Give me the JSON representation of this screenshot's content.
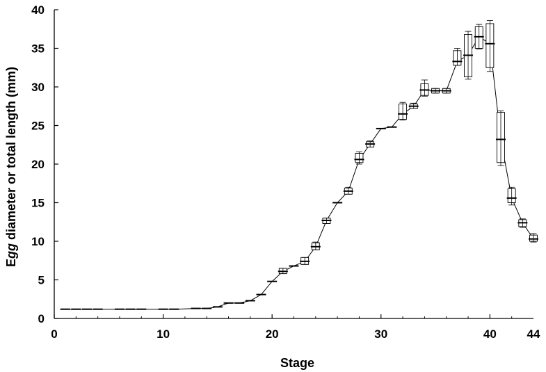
{
  "chart_data": {
    "type": "box",
    "xlabel": "Stage",
    "ylabel_parts": [
      "E",
      "gg",
      " diameter or total length (mm)"
    ],
    "xlim": [
      0,
      44
    ],
    "ylim": [
      0,
      40
    ],
    "xticks": [
      0,
      10,
      20,
      30,
      40,
      44
    ],
    "yticks": [
      0,
      5,
      10,
      15,
      20,
      25,
      30,
      35,
      40
    ],
    "grid": false,
    "series": [
      {
        "stages": [
          1,
          2,
          3,
          4,
          6,
          7,
          8,
          10,
          11,
          13,
          14,
          15,
          16,
          17,
          18,
          19,
          20,
          21,
          22,
          23,
          24,
          25,
          26,
          27,
          28,
          29,
          30,
          31,
          32,
          33,
          34,
          35,
          36,
          37,
          38,
          39,
          40,
          41,
          42,
          43,
          44
        ],
        "median": [
          1.2,
          1.2,
          1.2,
          1.2,
          1.2,
          1.2,
          1.2,
          1.2,
          1.2,
          1.3,
          1.3,
          1.5,
          2.0,
          2.0,
          2.3,
          3.1,
          4.8,
          6.1,
          6.8,
          7.4,
          9.3,
          12.7,
          15.0,
          16.5,
          20.6,
          22.6,
          24.6,
          24.8,
          26.5,
          27.5,
          29.6,
          29.5,
          29.5,
          33.3,
          34.1,
          36.5,
          35.6,
          23.2,
          15.6,
          12.4,
          10.3
        ],
        "q1": [
          null,
          null,
          null,
          null,
          null,
          null,
          null,
          null,
          null,
          null,
          null,
          null,
          null,
          null,
          null,
          null,
          null,
          5.8,
          null,
          7.0,
          8.9,
          12.3,
          null,
          16.1,
          20.2,
          22.2,
          null,
          null,
          25.8,
          27.2,
          28.9,
          29.2,
          29.2,
          32.8,
          31.3,
          35.0,
          32.5,
          20.2,
          15.0,
          11.9,
          10.0
        ],
        "q3": [
          null,
          null,
          null,
          null,
          null,
          null,
          null,
          null,
          null,
          null,
          null,
          null,
          null,
          null,
          null,
          null,
          null,
          6.5,
          null,
          7.9,
          9.8,
          13.0,
          null,
          16.9,
          21.4,
          22.9,
          null,
          null,
          27.8,
          27.8,
          30.4,
          29.8,
          29.8,
          34.7,
          36.8,
          37.8,
          38.2,
          26.7,
          16.8,
          12.8,
          10.8
        ],
        "min": [
          null,
          null,
          null,
          null,
          null,
          null,
          null,
          null,
          null,
          null,
          null,
          null,
          null,
          null,
          null,
          null,
          null,
          5.8,
          null,
          7.0,
          8.9,
          12.3,
          null,
          16.1,
          20.0,
          22.2,
          null,
          null,
          25.7,
          27.2,
          28.8,
          29.2,
          29.2,
          32.8,
          31.0,
          34.9,
          32.0,
          19.8,
          14.7,
          11.8,
          9.9
        ],
        "max": [
          null,
          null,
          null,
          null,
          null,
          null,
          null,
          null,
          null,
          null,
          null,
          null,
          null,
          null,
          null,
          null,
          null,
          6.5,
          null,
          7.9,
          9.9,
          13.0,
          null,
          17.0,
          21.6,
          23.0,
          null,
          null,
          28.0,
          27.9,
          30.9,
          29.8,
          29.8,
          35.0,
          37.2,
          38.1,
          38.6,
          26.9,
          17.0,
          12.9,
          11.0
        ]
      }
    ]
  }
}
